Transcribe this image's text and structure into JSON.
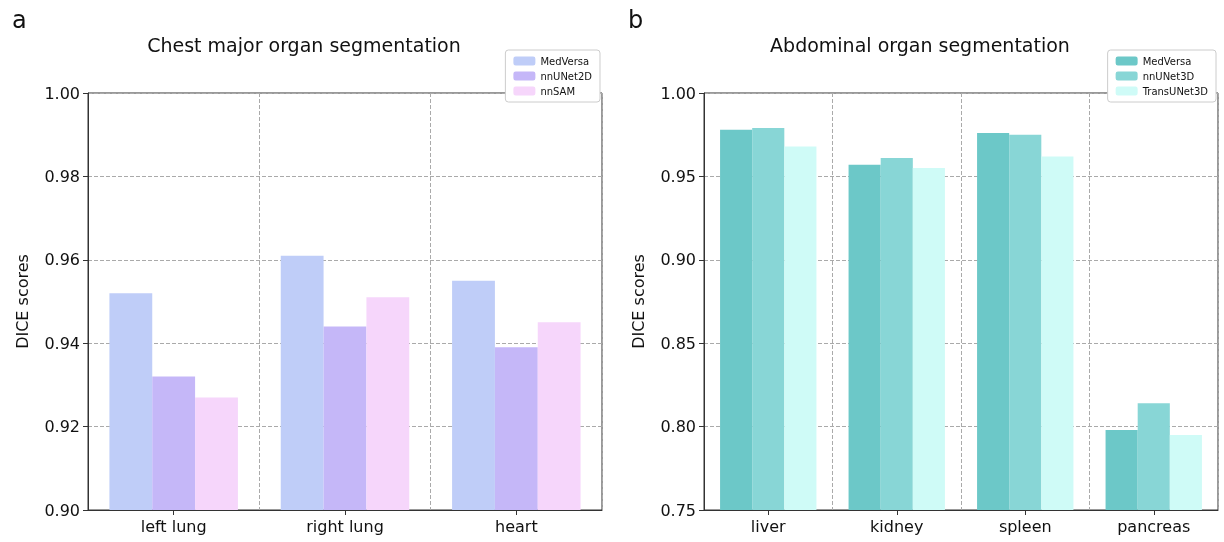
{
  "chart_data": [
    {
      "type": "bar",
      "title": "Chest major organ segmentation",
      "annotations": [
        "a"
      ],
      "ylabel": "DICE scores",
      "categories": [
        "left lung",
        "right lung",
        "heart"
      ],
      "series": [
        {
          "name": "MedVersa",
          "color": "#bfcdf8",
          "values": [
            0.952,
            0.961,
            0.955
          ]
        },
        {
          "name": "nnUNet2D",
          "color": "#c5b7f8",
          "values": [
            0.932,
            0.944,
            0.939
          ]
        },
        {
          "name": "nnSAM",
          "color": "#f6d6fb",
          "values": [
            0.927,
            0.951,
            0.945
          ]
        }
      ],
      "ylim": [
        0.9,
        1.0
      ],
      "yticks": [
        {
          "value": 0.9,
          "label": "0.90"
        },
        0.92,
        0.94,
        0.96,
        0.98,
        {
          "value": 1.0,
          "label": "1.00"
        }
      ],
      "grid": true,
      "legend": "top right"
    },
    {
      "type": "bar",
      "title": "Abdominal organ segmentation",
      "annotations": [
        "b"
      ],
      "ylabel": "DICE scores",
      "categories": [
        "liver",
        "kidney",
        "spleen",
        "pancreas"
      ],
      "series": [
        {
          "name": "MedVersa",
          "color": "#6cc8c8",
          "values": [
            0.978,
            0.957,
            0.976,
            0.798
          ]
        },
        {
          "name": "nnUNet3D",
          "color": "#88d6d6",
          "values": [
            0.979,
            0.961,
            0.975,
            0.814
          ]
        },
        {
          "name": "TransUNet3D",
          "color": "#cffbf7",
          "values": [
            0.968,
            0.955,
            0.962,
            0.795
          ]
        }
      ],
      "ylim": [
        0.75,
        1.0
      ],
      "yticks": [
        0.75,
        {
          "value": 0.8,
          "label": "0.80"
        },
        0.85,
        {
          "value": 0.9,
          "label": "0.90"
        },
        0.95,
        {
          "value": 1.0,
          "label": "1.00"
        }
      ],
      "grid": true,
      "legend": "top right"
    }
  ]
}
